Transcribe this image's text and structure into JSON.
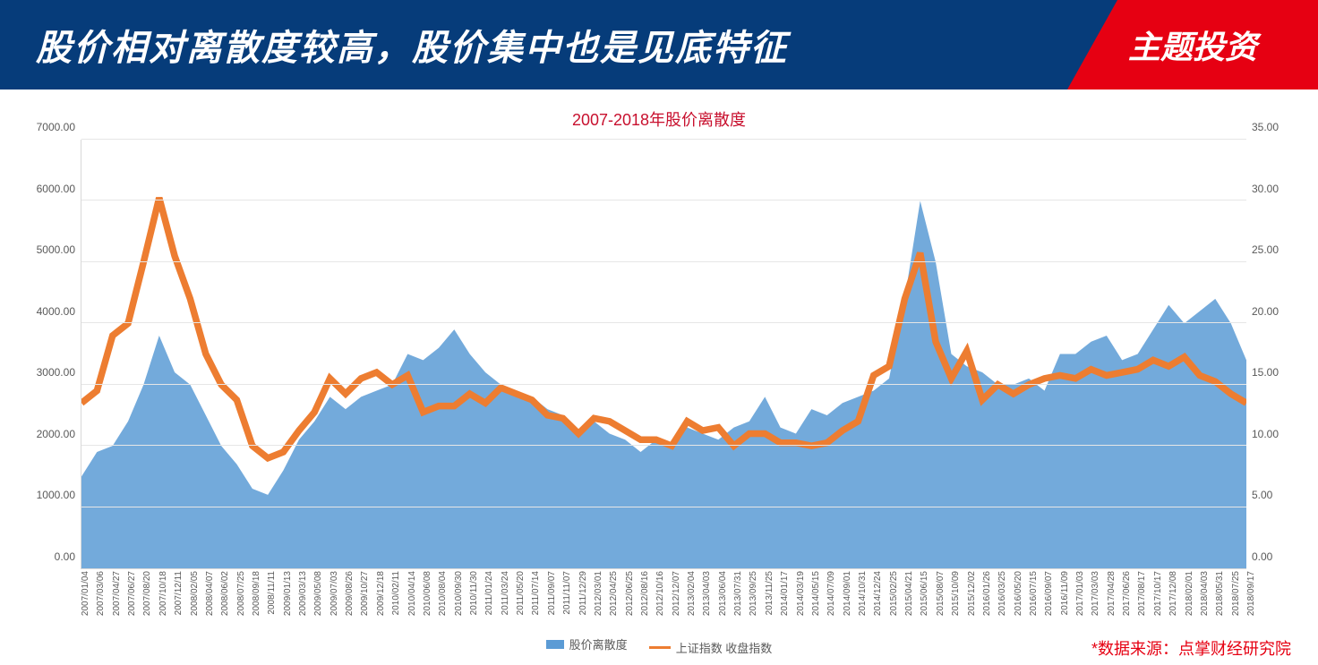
{
  "header": {
    "title": "股价相对离散度较高，股价集中也是见底特征",
    "badge": "主题投资"
  },
  "chart": {
    "title": "2007-2018年股价离散度",
    "type": "combo-area-line",
    "title_color": "#c8102e",
    "title_fontsize": 18,
    "background_color": "#ffffff",
    "grid_color": "#e6e6e6",
    "axis_color": "#d9d9d9",
    "tick_font_color": "#595959",
    "tick_fontsize": 12,
    "x_tick_fontsize": 10,
    "y_left": {
      "min": 0,
      "max": 7000,
      "step": 1000,
      "ticks": [
        "0.00",
        "1000.00",
        "2000.00",
        "3000.00",
        "4000.00",
        "5000.00",
        "6000.00",
        "7000.00"
      ]
    },
    "y_right": {
      "min": 0,
      "max": 35,
      "step": 5,
      "ticks": [
        "0.00",
        "5.00",
        "10.00",
        "15.00",
        "20.00",
        "25.00",
        "30.00",
        "35.00"
      ]
    },
    "x_categories": [
      "2007/01/04",
      "2007/03/06",
      "2007/04/27",
      "2007/06/27",
      "2007/08/20",
      "2007/10/18",
      "2007/12/11",
      "2008/02/05",
      "2008/04/07",
      "2008/06/02",
      "2008/07/25",
      "2008/09/18",
      "2008/11/11",
      "2009/01/13",
      "2009/03/13",
      "2009/05/08",
      "2009/07/03",
      "2009/08/26",
      "2009/10/27",
      "2009/12/18",
      "2010/02/11",
      "2010/04/14",
      "2010/06/08",
      "2010/08/04",
      "2010/09/30",
      "2010/11/30",
      "2011/01/24",
      "2011/03/24",
      "2011/05/20",
      "2011/07/14",
      "2011/09/07",
      "2011/11/07",
      "2011/12/29",
      "2012/03/01",
      "2012/04/25",
      "2012/06/25",
      "2012/08/16",
      "2012/10/16",
      "2012/12/07",
      "2013/02/04",
      "2013/04/03",
      "2013/06/04",
      "2013/07/31",
      "2013/09/25",
      "2013/11/25",
      "2014/01/17",
      "2014/03/19",
      "2014/05/15",
      "2014/07/09",
      "2014/09/01",
      "2014/10/31",
      "2014/12/24",
      "2015/02/25",
      "2015/04/21",
      "2015/06/15",
      "2015/08/07",
      "2015/10/09",
      "2015/12/02",
      "2016/01/26",
      "2016/03/25",
      "2016/05/20",
      "2016/07/15",
      "2016/09/07",
      "2016/11/09",
      "2017/01/03",
      "2017/03/03",
      "2017/04/28",
      "2017/06/26",
      "2017/08/17",
      "2017/10/17",
      "2017/12/08",
      "2018/02/01",
      "2018/04/03",
      "2018/05/31",
      "2018/07/25",
      "2018/09/17"
    ],
    "series": [
      {
        "name": "股价离散度",
        "type": "area",
        "axis": "right",
        "color": "#5b9bd5",
        "fill_opacity": 0.85,
        "values": [
          7.5,
          9.5,
          10.0,
          12.0,
          15.0,
          19.0,
          16.0,
          15.0,
          12.5,
          10.0,
          8.5,
          6.5,
          6.0,
          8.0,
          10.5,
          12.0,
          14.0,
          13.0,
          14.0,
          14.5,
          15.0,
          17.5,
          17.0,
          18.0,
          19.5,
          17.5,
          16.0,
          15.0,
          14.0,
          14.0,
          13.0,
          12.5,
          11.0,
          12.0,
          11.0,
          10.5,
          9.5,
          10.5,
          10.0,
          11.5,
          11.0,
          10.5,
          11.5,
          12.0,
          14.0,
          11.5,
          11.0,
          13.0,
          12.5,
          13.5,
          14.0,
          14.5,
          15.5,
          22.0,
          30.0,
          25.0,
          17.5,
          16.5,
          16.0,
          15.0,
          15.0,
          15.5,
          14.5,
          17.5,
          17.5,
          18.5,
          19.0,
          17.0,
          17.5,
          19.5,
          21.5,
          20.0,
          21.0,
          22.0,
          20.0,
          17.0
        ]
      },
      {
        "name": "上证指数 收盘指数",
        "type": "line",
        "axis": "left",
        "color": "#ed7d31",
        "line_width": 2.5,
        "values": [
          2700,
          2900,
          3800,
          4000,
          5000,
          6050,
          5100,
          4400,
          3500,
          3000,
          2750,
          2000,
          1800,
          1900,
          2250,
          2550,
          3100,
          2850,
          3100,
          3200,
          3000,
          3150,
          2550,
          2650,
          2650,
          2850,
          2700,
          2950,
          2850,
          2750,
          2500,
          2450,
          2200,
          2450,
          2400,
          2250,
          2100,
          2100,
          2000,
          2400,
          2250,
          2300,
          2000,
          2200,
          2200,
          2050,
          2050,
          2000,
          2050,
          2250,
          2400,
          3150,
          3300,
          4400,
          5150,
          3700,
          3100,
          3550,
          2750,
          3000,
          2850,
          3000,
          3100,
          3150,
          3100,
          3250,
          3150,
          3200,
          3250,
          3400,
          3300,
          3450,
          3150,
          3050,
          2850,
          2700
        ]
      }
    ],
    "legend": {
      "items": [
        {
          "label": "股价离散度",
          "swatch_type": "area",
          "color": "#5b9bd5"
        },
        {
          "label": "上证指数 收盘指数",
          "swatch_type": "line",
          "color": "#ed7d31"
        }
      ]
    },
    "source": "*数据来源：点掌财经研究院",
    "source_color": "#e60012",
    "source_fontsize": 18
  }
}
